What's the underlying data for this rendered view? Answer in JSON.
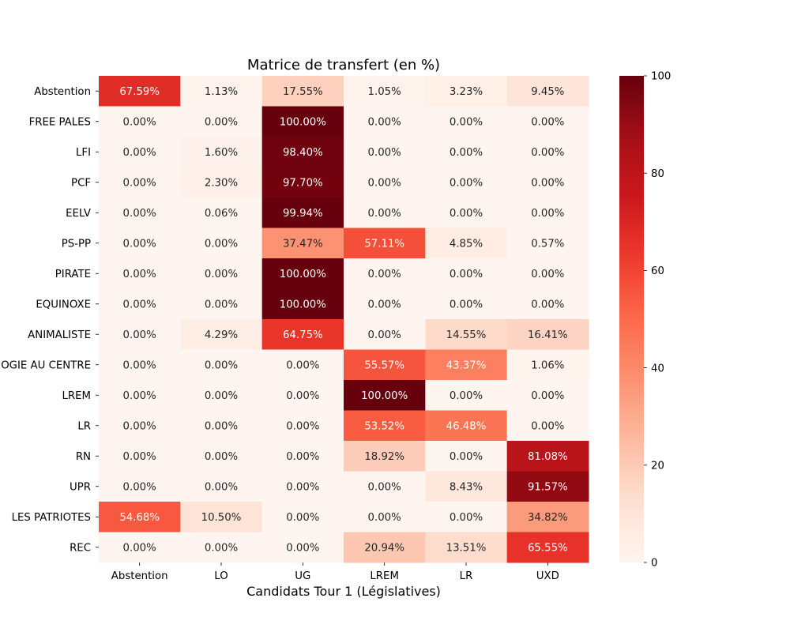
{
  "chart_data": {
    "type": "heatmap",
    "title": "Matrice de transfert (en %)",
    "xlabel": "Candidats Tour 1 (Législatives)",
    "ylabel": "",
    "x_categories": [
      "Abstention",
      "LO",
      "UG",
      "LREM",
      "LR",
      "UXD"
    ],
    "y_categories": [
      "Abstention",
      "FREE PALES",
      "LFI",
      "PCF",
      "EELV",
      "PS-PP",
      "PIRATE",
      "EQUINOXE",
      "ANIMALISTE",
      "OGIE AU CENTRE",
      "LREM",
      "LR",
      "RN",
      "UPR",
      "LES PATRIOTES",
      "REC"
    ],
    "values": [
      [
        67.59,
        1.13,
        17.55,
        1.05,
        3.23,
        9.45
      ],
      [
        0.0,
        0.0,
        100.0,
        0.0,
        0.0,
        0.0
      ],
      [
        0.0,
        1.6,
        98.4,
        0.0,
        0.0,
        0.0
      ],
      [
        0.0,
        2.3,
        97.7,
        0.0,
        0.0,
        0.0
      ],
      [
        0.0,
        0.06,
        99.94,
        0.0,
        0.0,
        0.0
      ],
      [
        0.0,
        0.0,
        37.47,
        57.11,
        4.85,
        0.57
      ],
      [
        0.0,
        0.0,
        100.0,
        0.0,
        0.0,
        0.0
      ],
      [
        0.0,
        0.0,
        100.0,
        0.0,
        0.0,
        0.0
      ],
      [
        0.0,
        4.29,
        64.75,
        0.0,
        14.55,
        16.41
      ],
      [
        0.0,
        0.0,
        0.0,
        55.57,
        43.37,
        1.06
      ],
      [
        0.0,
        0.0,
        0.0,
        100.0,
        0.0,
        0.0
      ],
      [
        0.0,
        0.0,
        0.0,
        53.52,
        46.48,
        0.0
      ],
      [
        0.0,
        0.0,
        0.0,
        18.92,
        0.0,
        81.08
      ],
      [
        0.0,
        0.0,
        0.0,
        0.0,
        8.43,
        91.57
      ],
      [
        54.68,
        10.5,
        0.0,
        0.0,
        0.0,
        34.82
      ],
      [
        0.0,
        0.0,
        0.0,
        20.94,
        13.51,
        65.55
      ]
    ],
    "value_format": "percent_2dp",
    "colormap": "Reds",
    "colorbar": {
      "range": [
        0,
        100
      ],
      "ticks": [
        0,
        20,
        40,
        60,
        80,
        100
      ],
      "tick_labels": [
        "0",
        "20",
        "40",
        "60",
        "80",
        "100"
      ],
      "placement": "right"
    },
    "grid": false,
    "colors": {
      "low": "#fff5f0",
      "high": "#67000d",
      "dark_text": "#262626",
      "light_text": "#ffffff"
    }
  }
}
